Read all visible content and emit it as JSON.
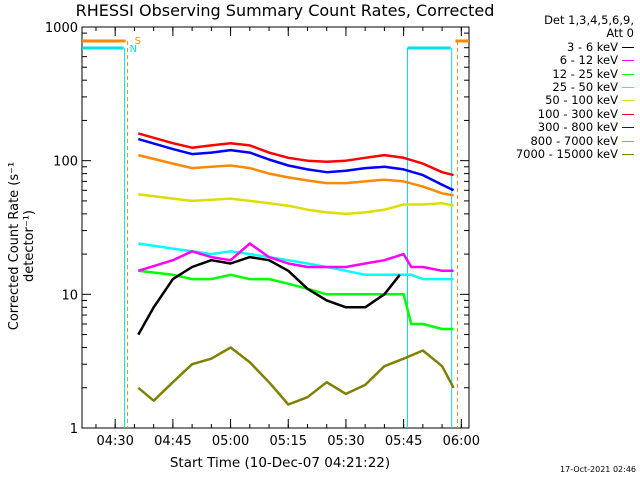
{
  "chart_data": {
    "type": "line",
    "title": "RHESSI Observing Summary Count Rates, Corrected",
    "xlabel": "Start Time (10-Dec-07 04:21:22)",
    "ylabel": "Corrected Count Rate (s⁻¹ detector⁻¹)",
    "yscale": "log",
    "ylim": [
      1,
      1000
    ],
    "xlim": [
      "04:21:22",
      "06:02:00"
    ],
    "x_ticks": [
      "04:30",
      "04:45",
      "05:00",
      "05:15",
      "05:30",
      "05:45",
      "06:00"
    ],
    "y_ticks": [
      "1",
      "10",
      "100",
      "1000"
    ],
    "legend_header": [
      "Det 1,3,4,5,6,9,",
      "Att 0"
    ],
    "legend_position": "right",
    "flags": [
      {
        "label": "S",
        "color": "#ff8800"
      },
      {
        "label": "N",
        "color": "#00e0e0"
      }
    ],
    "series": [
      {
        "name": "3 - 6 keV",
        "color": "#000000",
        "x": [
          "04:36",
          "04:40",
          "04:45",
          "04:50",
          "04:55",
          "05:00",
          "05:05",
          "05:10",
          "05:15",
          "05:20",
          "05:25",
          "05:30",
          "05:35",
          "05:40",
          "05:44"
        ],
        "values": [
          5,
          8,
          13,
          16,
          18,
          17,
          19,
          18,
          15,
          11,
          9,
          8,
          8,
          10,
          14
        ]
      },
      {
        "name": "6 - 12 keV",
        "color": "#ff00ff",
        "x": [
          "04:36",
          "04:45",
          "04:50",
          "04:55",
          "05:00",
          "05:05",
          "05:10",
          "05:15",
          "05:20",
          "05:25",
          "05:30",
          "05:35",
          "05:40",
          "05:45",
          "05:47",
          "05:50",
          "05:55",
          "05:58"
        ],
        "values": [
          15,
          18,
          21,
          19,
          18,
          24,
          19,
          17,
          16,
          16,
          16,
          17,
          18,
          20,
          16,
          16,
          15,
          15
        ]
      },
      {
        "name": "12 - 25 keV",
        "color": "#00ff00",
        "x": [
          "04:36",
          "04:45",
          "04:50",
          "04:55",
          "05:00",
          "05:05",
          "05:10",
          "05:15",
          "05:20",
          "05:25",
          "05:30",
          "05:35",
          "05:40",
          "05:45",
          "05:47",
          "05:50",
          "05:55",
          "05:58"
        ],
        "values": [
          15,
          14,
          13,
          13,
          14,
          13,
          13,
          12,
          11,
          10,
          10,
          10,
          10,
          10,
          6,
          6,
          5.5,
          5.5
        ]
      },
      {
        "name": "25 - 50 keV",
        "color": "#00ffff",
        "x": [
          "04:36",
          "04:45",
          "04:50",
          "04:55",
          "05:00",
          "05:05",
          "05:10",
          "05:15",
          "05:20",
          "05:25",
          "05:30",
          "05:35",
          "05:40",
          "05:45",
          "05:47",
          "05:50",
          "05:55",
          "05:58"
        ],
        "values": [
          24,
          22,
          21,
          20,
          21,
          20,
          19,
          18,
          17,
          16,
          15,
          14,
          14,
          14,
          14,
          13,
          13,
          13
        ]
      },
      {
        "name": "50 - 100 keV",
        "color": "#dddd00",
        "x": [
          "04:36",
          "04:45",
          "04:50",
          "04:55",
          "05:00",
          "05:05",
          "05:10",
          "05:15",
          "05:20",
          "05:25",
          "05:30",
          "05:35",
          "05:40",
          "05:45",
          "05:50",
          "05:55",
          "05:58"
        ],
        "values": [
          56,
          52,
          50,
          51,
          52,
          50,
          48,
          46,
          43,
          41,
          40,
          41,
          43,
          47,
          47,
          48,
          46
        ]
      },
      {
        "name": "100 - 300 keV",
        "color": "#ff0000",
        "x": [
          "04:36",
          "04:45",
          "04:50",
          "04:55",
          "05:00",
          "05:05",
          "05:10",
          "05:15",
          "05:20",
          "05:25",
          "05:30",
          "05:35",
          "05:40",
          "05:45",
          "05:50",
          "05:55",
          "05:58"
        ],
        "values": [
          160,
          135,
          125,
          130,
          135,
          130,
          115,
          105,
          100,
          98,
          100,
          105,
          110,
          105,
          95,
          82,
          78
        ]
      },
      {
        "name": "300 - 800 keV",
        "color": "#0000ff",
        "x": [
          "04:36",
          "04:45",
          "04:50",
          "04:55",
          "05:00",
          "05:05",
          "05:10",
          "05:15",
          "05:20",
          "05:25",
          "05:30",
          "05:35",
          "05:40",
          "05:45",
          "05:50",
          "05:55",
          "05:58"
        ],
        "values": [
          145,
          122,
          112,
          115,
          120,
          115,
          102,
          92,
          86,
          82,
          84,
          88,
          90,
          86,
          78,
          66,
          60
        ]
      },
      {
        "name": "800 - 7000 keV",
        "color": "#ff8800",
        "x": [
          "04:36",
          "04:45",
          "04:50",
          "04:55",
          "05:00",
          "05:05",
          "05:10",
          "05:15",
          "05:20",
          "05:25",
          "05:30",
          "05:35",
          "05:40",
          "05:45",
          "05:50",
          "05:55",
          "05:58"
        ],
        "values": [
          110,
          95,
          88,
          90,
          92,
          88,
          80,
          75,
          71,
          68,
          68,
          70,
          72,
          70,
          64,
          57,
          55
        ]
      },
      {
        "name": "7000 - 15000 keV",
        "color": "#808000",
        "x": [
          "04:36",
          "04:40",
          "04:45",
          "04:50",
          "04:55",
          "05:00",
          "05:05",
          "05:10",
          "05:15",
          "05:20",
          "05:25",
          "05:30",
          "05:35",
          "05:40",
          "05:45",
          "05:50",
          "05:55",
          "05:58"
        ],
        "values": [
          2,
          1.6,
          2.2,
          3,
          3.3,
          4,
          3.1,
          2.2,
          1.5,
          1.7,
          2.2,
          1.8,
          2.1,
          2.9,
          3.3,
          3.8,
          2.9,
          2
        ]
      }
    ]
  },
  "footer_timestamp": "17-Oct-2021 02:46"
}
